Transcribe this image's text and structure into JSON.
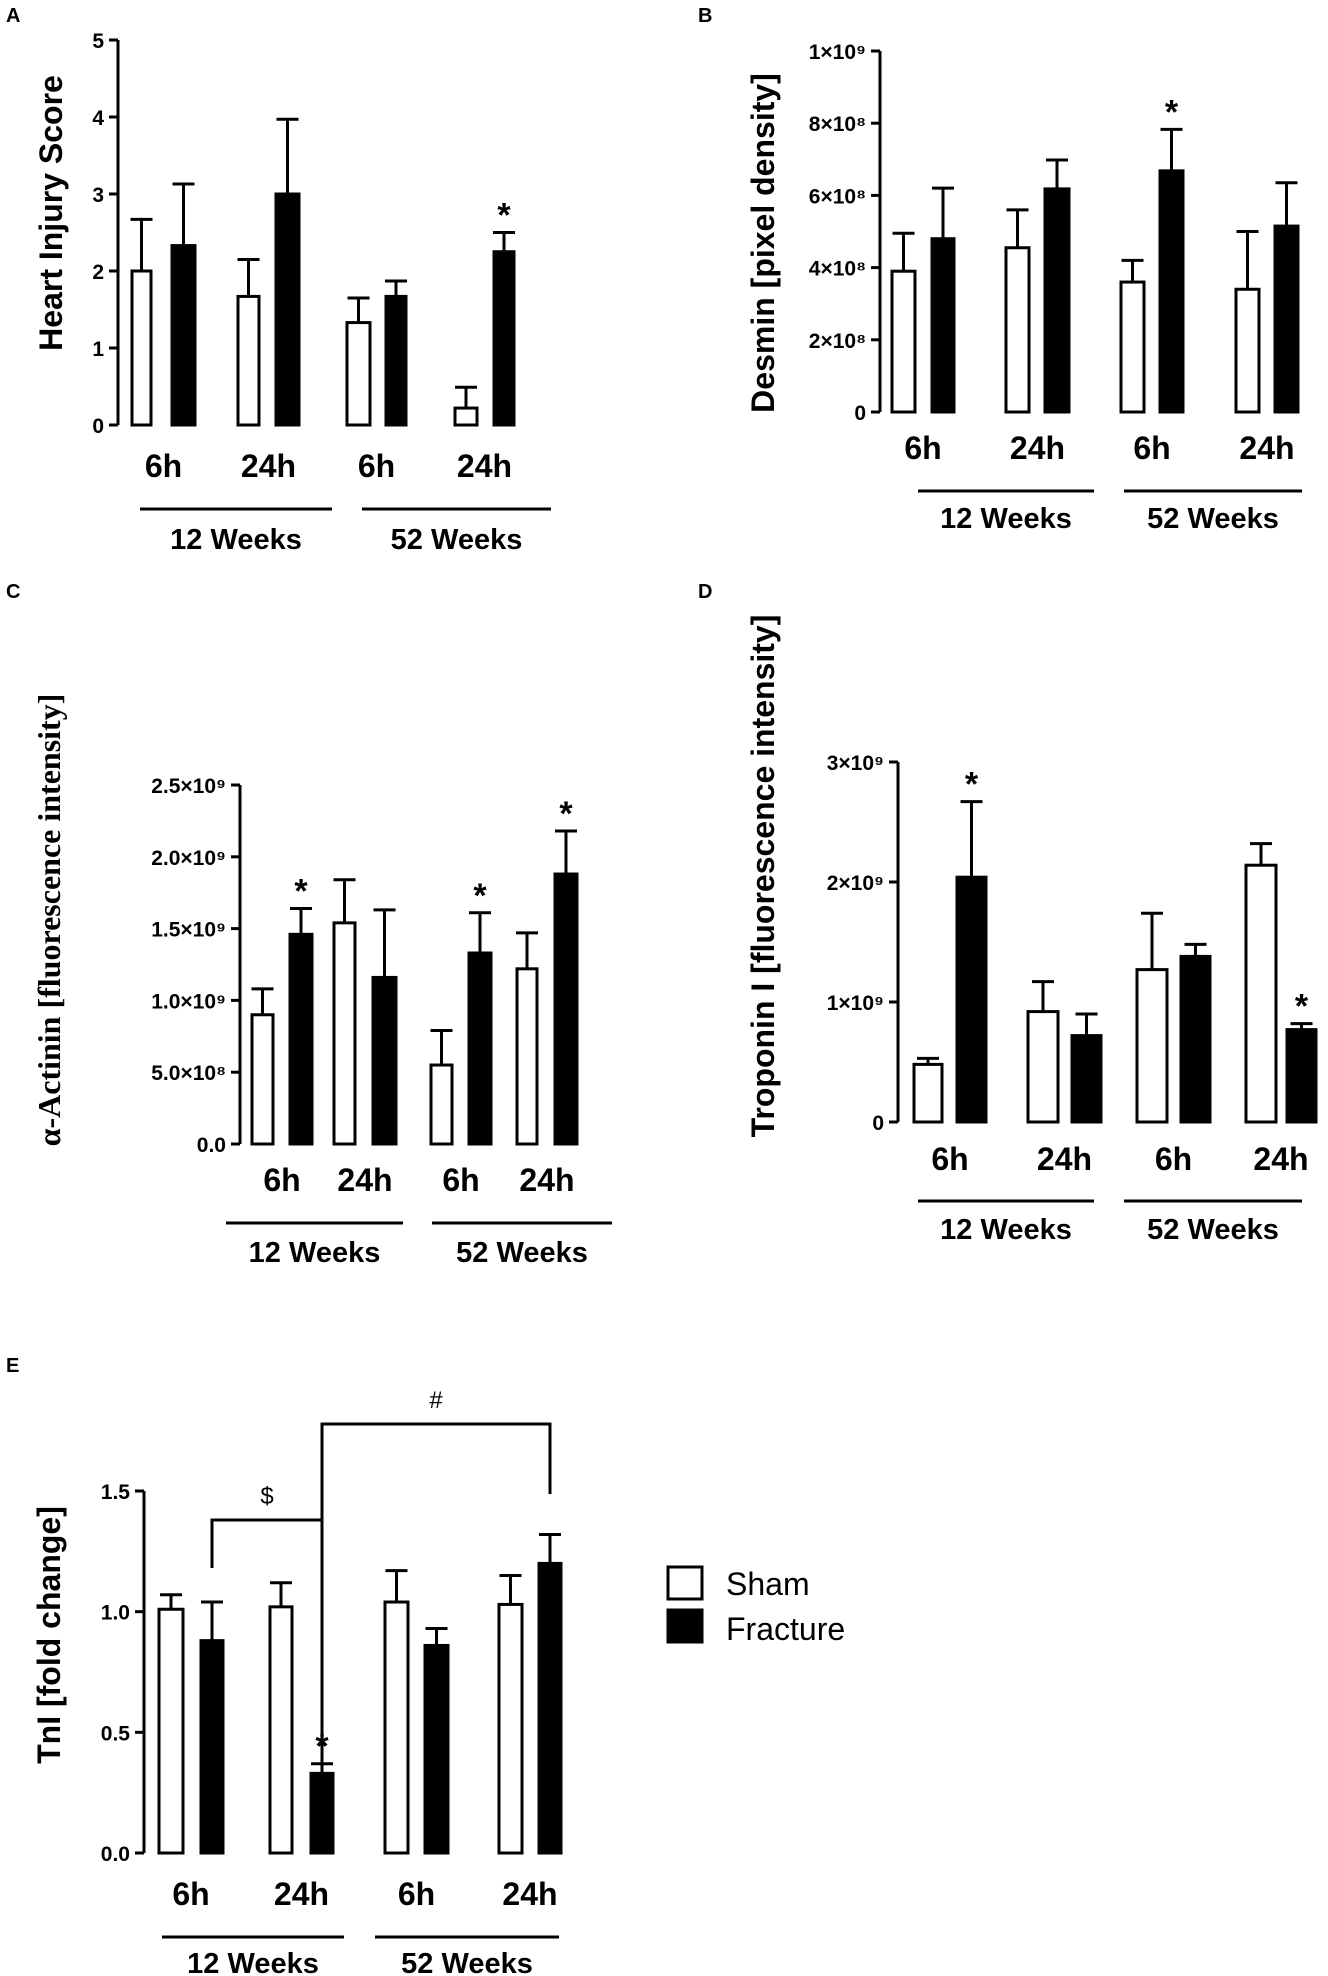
{
  "series_names": [
    "Sham",
    "Fracture"
  ],
  "colors": {
    "sham_fill": "#ffffff",
    "fracture_fill": "#000000",
    "stroke": "#000000"
  },
  "legend": {
    "sham": "Sham",
    "fracture": "Fracture"
  },
  "chart_data": [
    {
      "panel": "A",
      "type": "bar",
      "ylabel": "Heart Injury Score",
      "ylim": [
        0,
        5
      ],
      "ticks": [
        "0",
        "1",
        "2",
        "3",
        "4",
        "5"
      ],
      "categories": [
        "6h",
        "24h",
        "6h",
        "24h"
      ],
      "groups": [
        "12 Weeks",
        "52 Weeks"
      ],
      "series": [
        {
          "name": "Sham",
          "values": [
            2.0,
            1.67,
            1.33,
            0.22
          ],
          "errors": [
            0.67,
            0.48,
            0.32,
            0.27
          ]
        },
        {
          "name": "Fracture",
          "values": [
            2.33,
            3.0,
            1.67,
            2.25
          ],
          "errors": [
            0.8,
            0.97,
            0.2,
            0.25
          ]
        }
      ],
      "annotations": [
        {
          "text": "*",
          "index": 3,
          "series": 1
        }
      ]
    },
    {
      "panel": "B",
      "type": "bar",
      "ylabel": "Desmin [pixel density]",
      "ylim": [
        0,
        1000000000
      ],
      "ticks": [
        "0",
        "2×10⁸",
        "4×10⁸",
        "6×10⁸",
        "8×10⁸",
        "1×10⁹"
      ],
      "categories": [
        "6h",
        "24h",
        "6h",
        "24h"
      ],
      "groups": [
        "12 Weeks",
        "52 Weeks"
      ],
      "series": [
        {
          "name": "Sham",
          "values": [
            390000000,
            455000000,
            360000000,
            340000000
          ],
          "errors": [
            105000000,
            105000000,
            60000000,
            160000000
          ]
        },
        {
          "name": "Fracture",
          "values": [
            480000000,
            618000000,
            668000000,
            515000000
          ],
          "errors": [
            140000000,
            80000000,
            115000000,
            120000000
          ]
        }
      ],
      "annotations": [
        {
          "text": "*",
          "index": 2,
          "series": 1
        }
      ]
    },
    {
      "panel": "C",
      "type": "bar",
      "ylabel": "α-Actinin [fluorescence intensity]",
      "ylim": [
        0,
        2500000000
      ],
      "ticks": [
        "0.0",
        "5.0×10⁸",
        "1.0×10⁹",
        "1.5×10⁹",
        "2.0×10⁹",
        "2.5×10⁹"
      ],
      "categories": [
        "6h",
        "24h",
        "6h",
        "24h"
      ],
      "groups": [
        "12 Weeks",
        "52 Weeks"
      ],
      "series": [
        {
          "name": "Sham",
          "values": [
            900000000,
            1540000000,
            550000000,
            1220000000
          ],
          "errors": [
            180000000,
            300000000,
            240000000,
            250000000
          ]
        },
        {
          "name": "Fracture",
          "values": [
            1460000000,
            1160000000,
            1330000000,
            1880000000
          ],
          "errors": [
            180000000,
            470000000,
            280000000,
            300000000
          ]
        }
      ],
      "annotations": [
        {
          "text": "*",
          "index": 0,
          "series": 1
        },
        {
          "text": "*",
          "index": 2,
          "series": 1
        },
        {
          "text": "*",
          "index": 3,
          "series": 1
        }
      ]
    },
    {
      "panel": "D",
      "type": "bar",
      "ylabel": "Troponin I [fluorescence intensity]",
      "ylim": [
        0,
        3000000000
      ],
      "ticks": [
        "0",
        "1×10⁹",
        "2×10⁹",
        "3×10⁹"
      ],
      "categories": [
        "6h",
        "24h",
        "6h",
        "24h"
      ],
      "groups": [
        "12 Weeks",
        "52 Weeks"
      ],
      "series": [
        {
          "name": "Sham",
          "values": [
            480000000,
            920000000,
            1270000000,
            2140000000
          ],
          "errors": [
            50000000,
            250000000,
            470000000,
            180000000
          ]
        },
        {
          "name": "Fracture",
          "values": [
            2040000000,
            720000000,
            1380000000,
            770000000
          ],
          "errors": [
            630000000,
            180000000,
            100000000,
            50000000
          ]
        }
      ],
      "annotations": [
        {
          "text": "*",
          "index": 0,
          "series": 1
        },
        {
          "text": "*",
          "index": 3,
          "series": 1
        }
      ]
    },
    {
      "panel": "E",
      "type": "bar",
      "ylabel": "TnI [fold change]",
      "ylim": [
        0,
        1.5
      ],
      "ticks": [
        "0.0",
        "0.5",
        "1.0",
        "1.5"
      ],
      "categories": [
        "6h",
        "24h",
        "6h",
        "24h"
      ],
      "groups": [
        "12 Weeks",
        "52 Weeks"
      ],
      "series": [
        {
          "name": "Sham",
          "values": [
            1.01,
            1.02,
            1.04,
            1.03
          ],
          "errors": [
            0.06,
            0.1,
            0.13,
            0.12
          ]
        },
        {
          "name": "Fracture",
          "values": [
            0.88,
            0.33,
            0.86,
            1.2
          ],
          "errors": [
            0.16,
            0.04,
            0.07,
            0.12
          ]
        }
      ],
      "annotations": [
        {
          "text": "*",
          "index": 1,
          "series": 1
        }
      ],
      "comparisons": [
        {
          "text": "$",
          "from": {
            "index": 0,
            "series": 1
          },
          "to": {
            "index": 1,
            "series": 1
          }
        },
        {
          "text": "#",
          "from": {
            "index": 1,
            "series": 1
          },
          "to": {
            "index": 3,
            "series": 1
          }
        }
      ]
    }
  ]
}
